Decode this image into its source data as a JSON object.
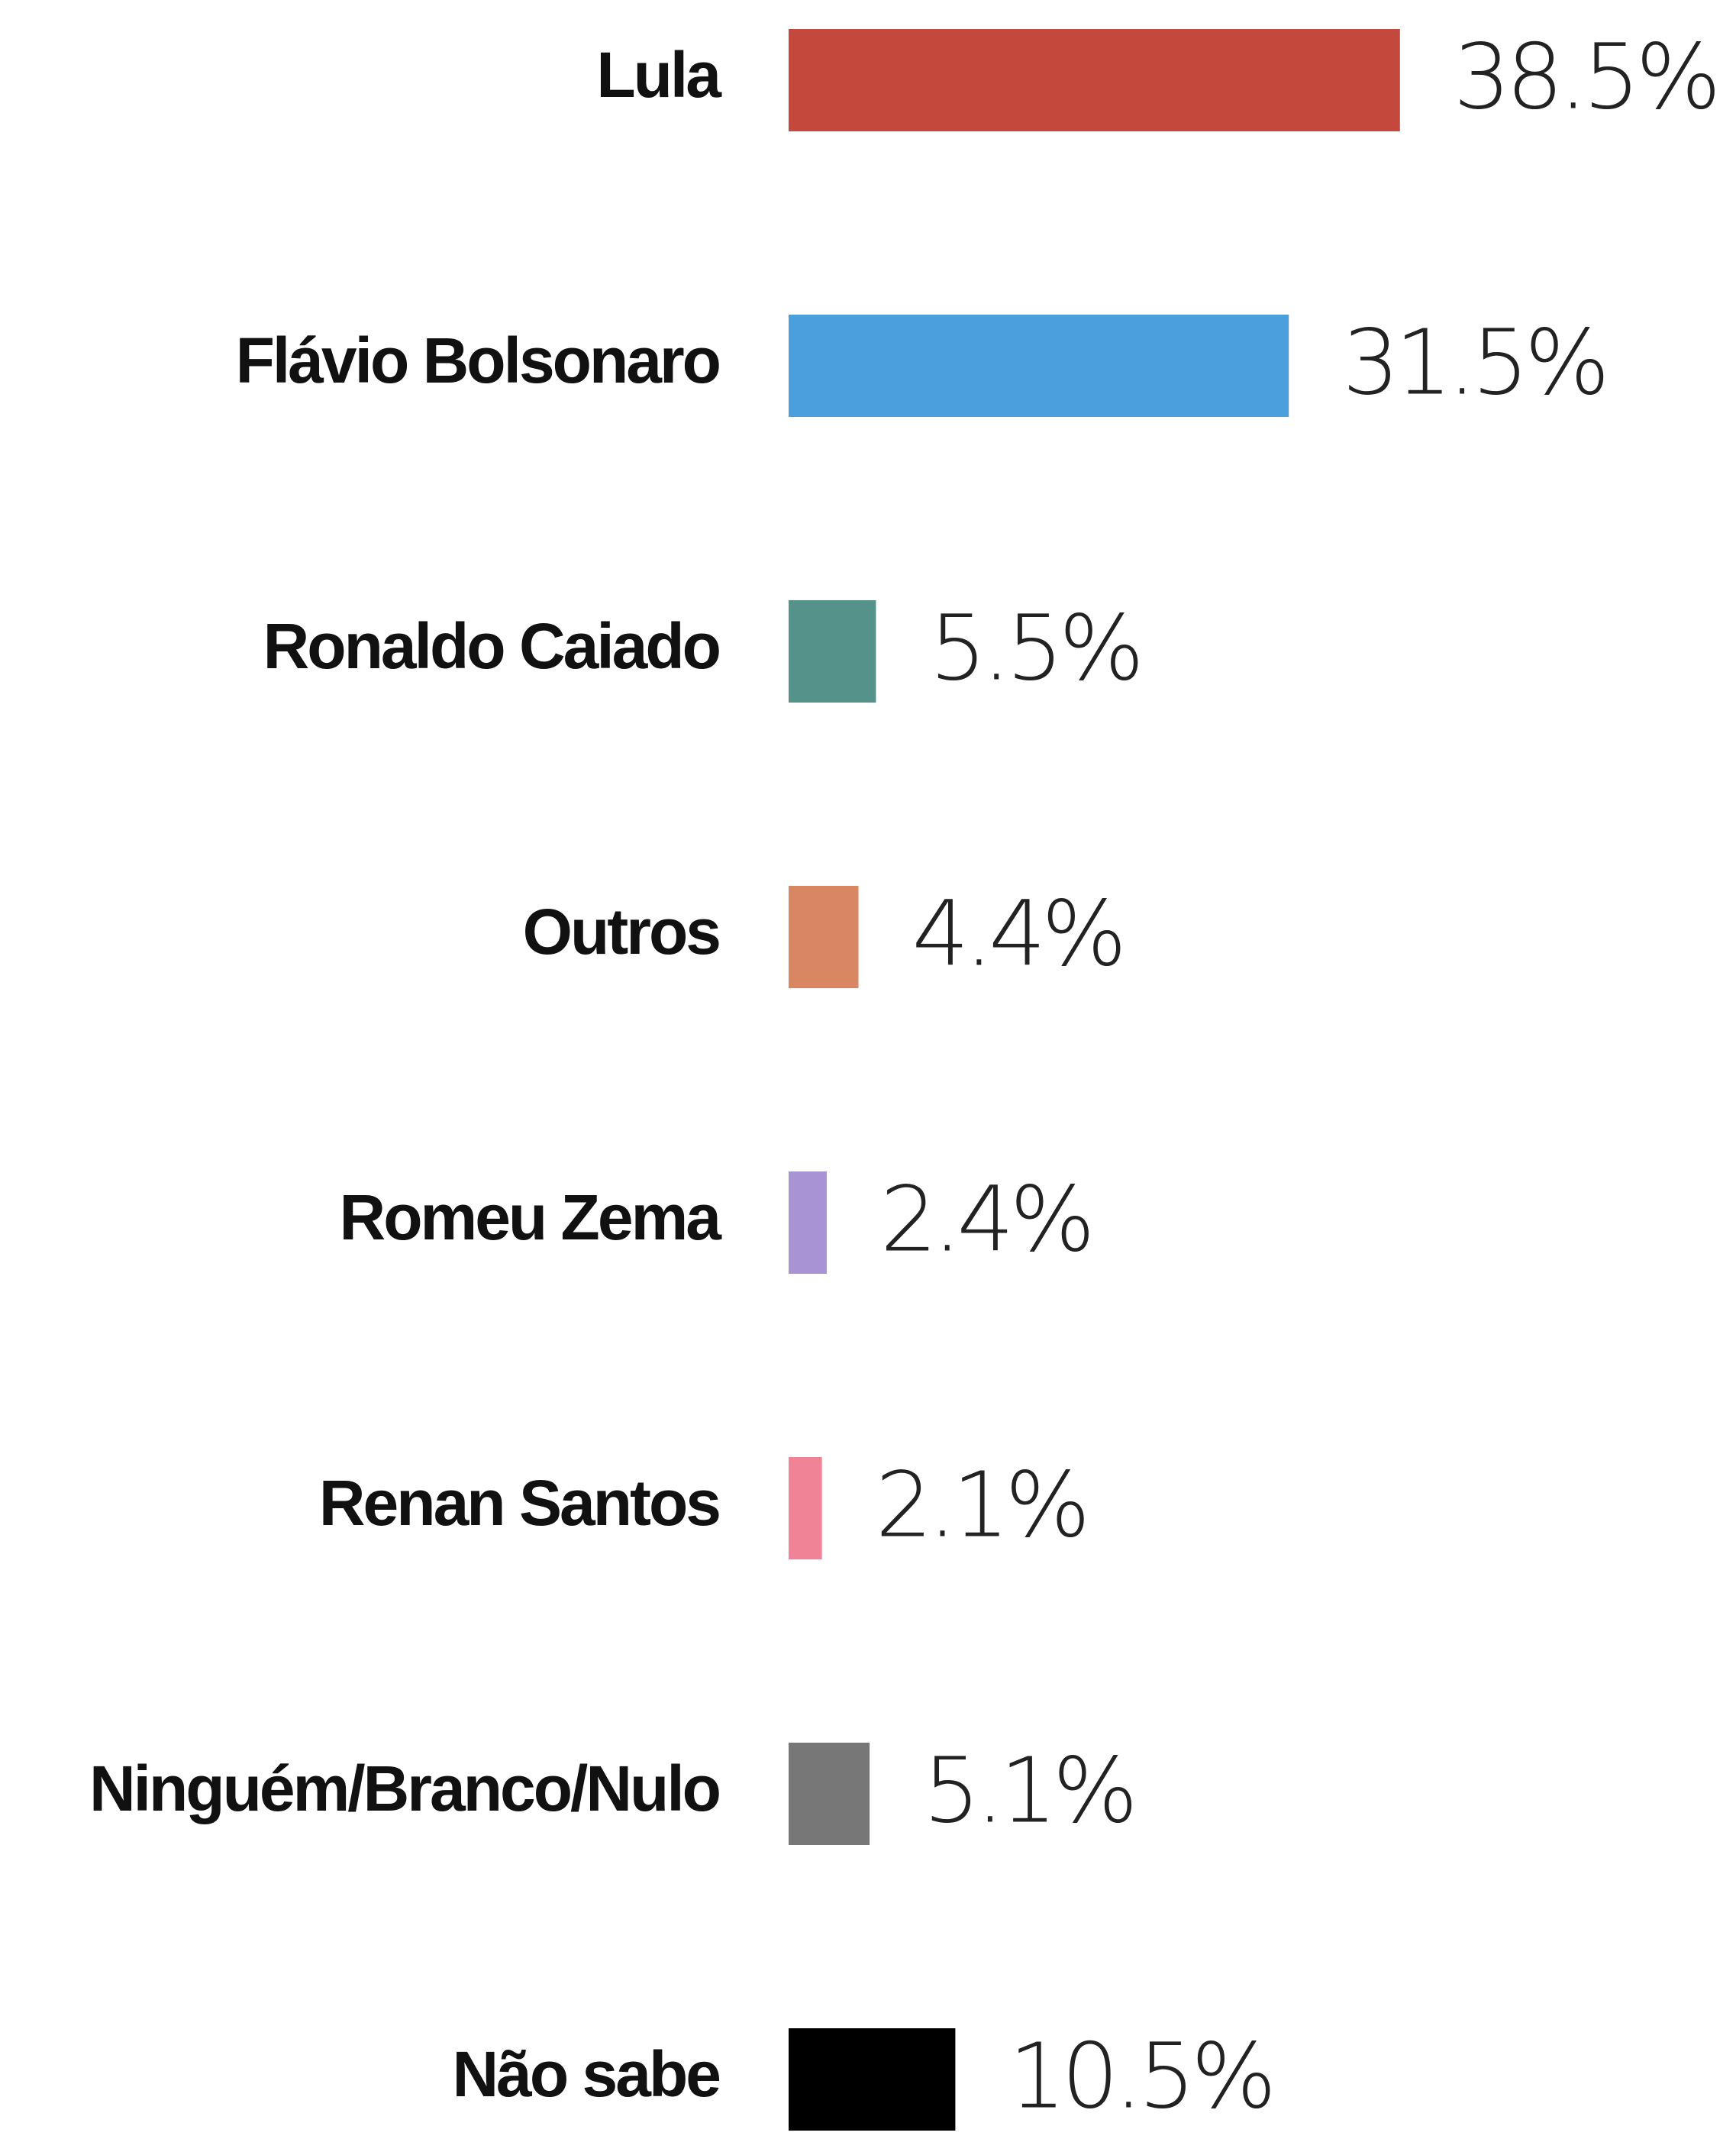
{
  "chart_data": {
    "type": "bar",
    "orientation": "horizontal",
    "categories": [
      "Lula",
      "Flávio Bolsonaro",
      "Ronaldo Caiado",
      "Outros",
      "Romeu Zema",
      "Renan Santos",
      "Ninguém/Branco/Nulo",
      "Não sabe"
    ],
    "values": [
      38.5,
      31.5,
      5.5,
      4.4,
      2.4,
      2.1,
      5.1,
      10.5
    ],
    "value_labels": [
      "38.5%",
      "31.5%",
      "5.5%",
      "4.4%",
      "2.4%",
      "2.1%",
      "5.1%",
      "10.5%"
    ],
    "colors": [
      "#c5483c",
      "#4c9fdd",
      "#54928a",
      "#d88762",
      "#a893d5",
      "#f08496",
      "#777777",
      "#000000"
    ]
  }
}
